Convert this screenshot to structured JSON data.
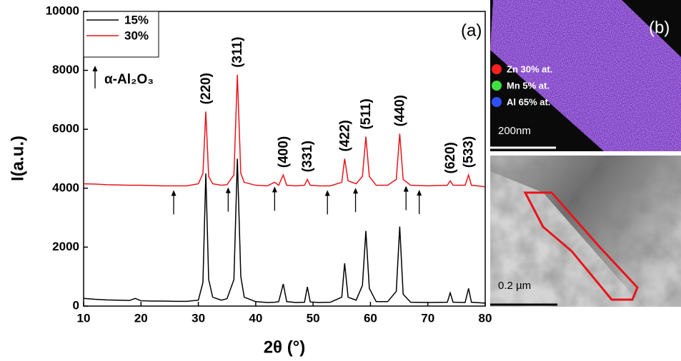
{
  "chart_data": {
    "type": "line",
    "panel_label": "(a)",
    "xlabel": "2θ (°)",
    "ylabel": "I(a.u.)",
    "xlim": [
      10,
      80
    ],
    "xticks": [
      10,
      20,
      30,
      40,
      50,
      60,
      70,
      80
    ],
    "ylim": [
      0,
      10000
    ],
    "yticks": [
      0,
      2000,
      4000,
      6000,
      8000,
      10000
    ],
    "x": [
      10,
      12,
      14,
      16,
      18,
      19,
      20,
      22,
      24,
      26,
      28,
      30,
      30.8,
      31.3,
      31.8,
      32.5,
      34,
      35,
      36.2,
      36.8,
      37.4,
      38,
      40,
      42,
      43.3,
      44,
      44.8,
      45.4,
      47,
      48.5,
      49,
      49.5,
      51,
      53,
      55,
      55.5,
      56.1,
      57.5,
      58.6,
      59.2,
      59.8,
      61,
      63,
      64.5,
      65.1,
      65.7,
      67,
      70,
      73.4,
      73.9,
      74.4,
      76.5,
      77.1,
      77.6,
      80
    ],
    "series": [
      {
        "name": "15%",
        "color": "#000000",
        "values": [
          260,
          230,
          210,
          200,
          190,
          260,
          180,
          170,
          170,
          160,
          160,
          200,
          800,
          4500,
          900,
          300,
          200,
          250,
          900,
          5000,
          1000,
          300,
          150,
          120,
          130,
          150,
          750,
          150,
          120,
          130,
          650,
          140,
          120,
          130,
          300,
          1450,
          300,
          200,
          700,
          2550,
          600,
          150,
          150,
          500,
          2700,
          400,
          130,
          120,
          130,
          450,
          130,
          120,
          600,
          130,
          100
        ]
      },
      {
        "name": "30%",
        "color": "#e8141a",
        "values": [
          4150,
          4140,
          4120,
          4110,
          4100,
          4100,
          4100,
          4090,
          4080,
          4080,
          4080,
          4150,
          4500,
          6600,
          4400,
          4150,
          4100,
          4120,
          4450,
          7850,
          4500,
          4200,
          4100,
          4080,
          4200,
          4100,
          4450,
          4100,
          4080,
          4100,
          4300,
          4100,
          4080,
          4080,
          4200,
          5000,
          4250,
          4150,
          4400,
          5750,
          4400,
          4100,
          4100,
          4300,
          5850,
          4300,
          4100,
          4080,
          4100,
          4250,
          4100,
          4100,
          4450,
          4100,
          4050
        ]
      }
    ],
    "peak_labels": [
      {
        "label": "(220)",
        "x": 31.3
      },
      {
        "label": "(311)",
        "x": 36.8
      },
      {
        "label": "(400)",
        "x": 44.8
      },
      {
        "label": "(331)",
        "x": 49
      },
      {
        "label": "(422)",
        "x": 55.5
      },
      {
        "label": "(511)",
        "x": 59.2
      },
      {
        "label": "(440)",
        "x": 65.1
      },
      {
        "label": "(620)",
        "x": 73.9
      },
      {
        "label": "(533)",
        "x": 77.1
      }
    ],
    "arrow_markers": {
      "label": "α-Al₂O₃",
      "x": [
        25.7,
        35.2,
        43.3,
        52.5,
        57.4,
        66.2,
        68.5
      ]
    }
  },
  "panel_b": {
    "label": "(b)",
    "elements": [
      {
        "name": "Zn 30% at.",
        "color": "#ff2020"
      },
      {
        "name": "Mn 5% at.",
        "color": "#40e040"
      },
      {
        "name": "Al 65% at.",
        "color": "#3050ff"
      }
    ],
    "scale_top": "200nm",
    "scale_bottom": "0.2 µm"
  }
}
